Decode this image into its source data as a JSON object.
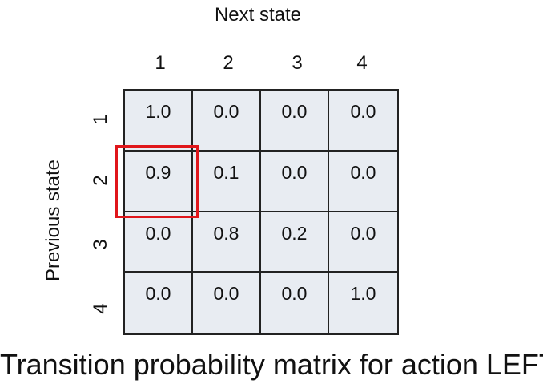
{
  "col_axis_title": "Next state",
  "row_axis_title": "Previous state",
  "col_headers": [
    "1",
    "2",
    "3",
    "4"
  ],
  "row_headers": [
    "1",
    "2",
    "3",
    "4"
  ],
  "matrix": [
    [
      "1.0",
      "0.0",
      "0.0",
      "0.0"
    ],
    [
      "0.9",
      "0.1",
      "0.0",
      "0.0"
    ],
    [
      "0.0",
      "0.8",
      "0.2",
      "0.0"
    ],
    [
      "0.0",
      "0.0",
      "0.0",
      "1.0"
    ]
  ],
  "highlighted_cell": {
    "row": 2,
    "col": 1
  },
  "colors": {
    "cell_fill": "#e8ecf2",
    "grid_line": "#222222",
    "highlight": "#e0161b"
  },
  "caption": "Transition probability matrix for action LEFT"
}
